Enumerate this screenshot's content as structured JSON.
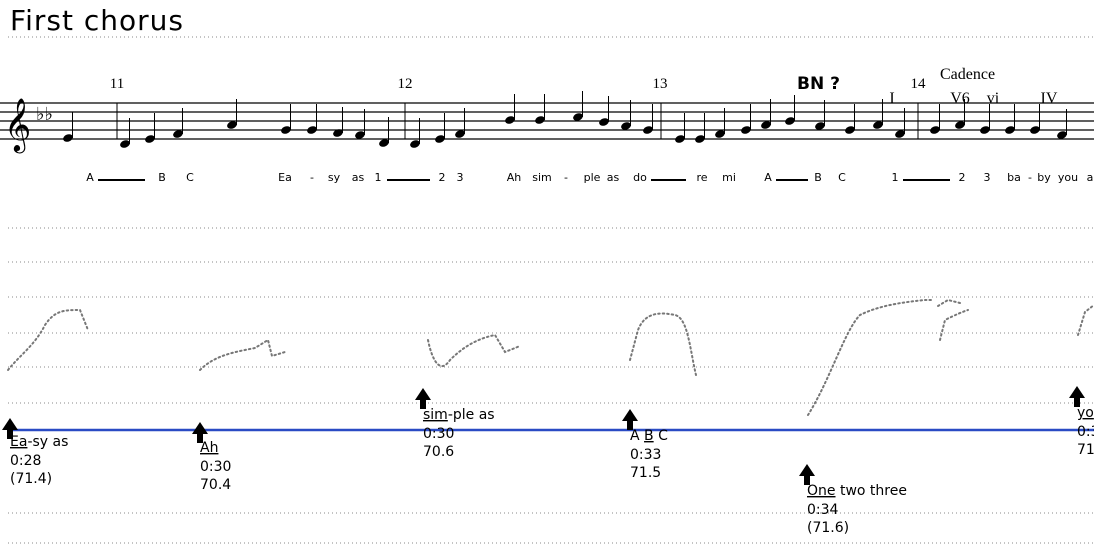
{
  "title": "First chorus",
  "measures": [
    "11",
    "12",
    "13",
    "14"
  ],
  "annotations": {
    "bn": "BN ?",
    "cadence": "Cadence"
  },
  "chords": [
    "I",
    "V6",
    "vi",
    "IV"
  ],
  "lyrics": [
    "A",
    "B",
    "C",
    "Ea",
    "-",
    "sy",
    "as",
    "1",
    "2",
    "3",
    "Ah",
    "sim",
    "-",
    "ple",
    "as",
    "do",
    "re",
    "mi",
    "A",
    "B",
    "C",
    "1",
    "2",
    "3",
    "ba",
    "-",
    "by",
    "you",
    "a"
  ],
  "markers": [
    {
      "label": [
        {
          "text": "Ea",
          "underline": true
        },
        {
          "text": "-sy as"
        }
      ],
      "time": "0:28",
      "value": "(71.4)"
    },
    {
      "label": [
        {
          "text": "Ah",
          "underline": true
        }
      ],
      "time": "0:30",
      "value": "70.4"
    },
    {
      "label": [
        {
          "text": "sim",
          "underline": true
        },
        {
          "text": "-ple as"
        }
      ],
      "time": "0:30",
      "value": "70.6"
    },
    {
      "label": [
        {
          "text": "A "
        },
        {
          "text": "B",
          "underline": true
        },
        {
          "text": " C"
        }
      ],
      "time": "0:33",
      "value": "71.5"
    },
    {
      "label": [
        {
          "text": "One",
          "underline": true
        },
        {
          "text": " two three"
        }
      ],
      "time": "0:34",
      "value": "(71.6)"
    },
    {
      "label": [
        {
          "text": "yo",
          "underline": true
        }
      ],
      "time": "0:3",
      "value": "71"
    }
  ]
}
